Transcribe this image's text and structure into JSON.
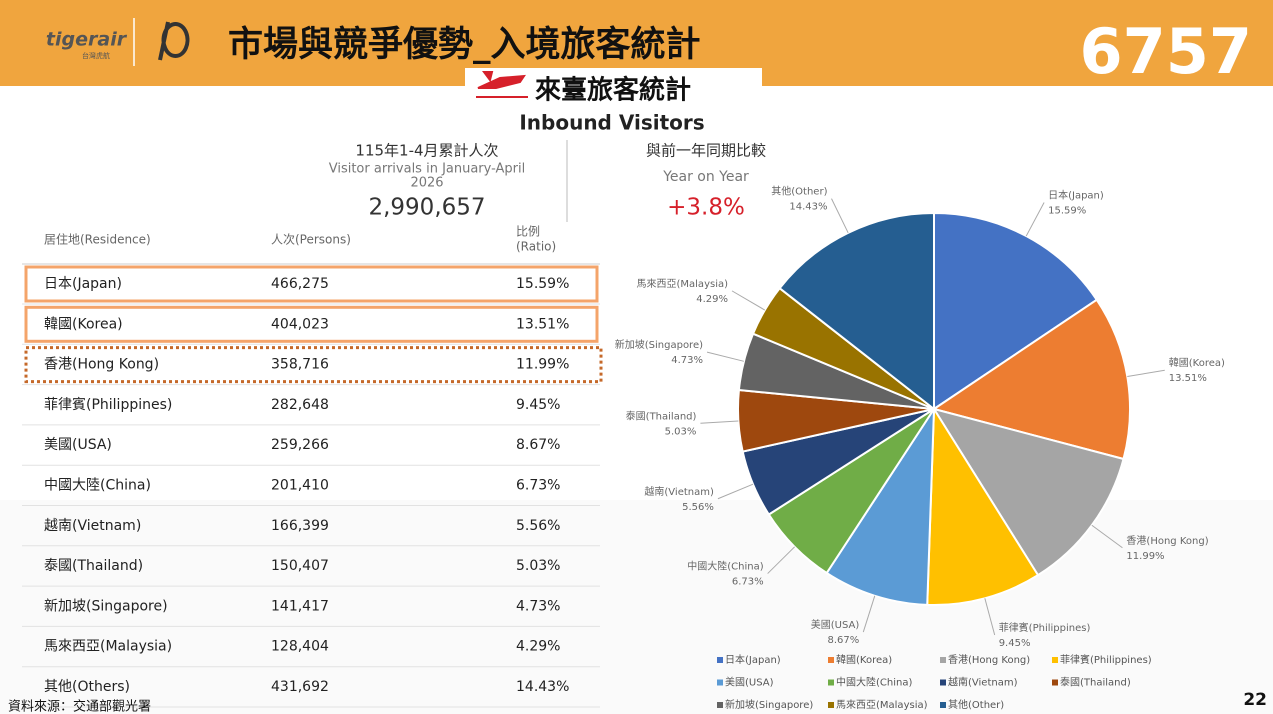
{
  "header": {
    "logo": "tigerair",
    "logo_sub": "台灣虎航",
    "title": "市場與競爭優勢_入境旅客統計",
    "code": "6757"
  },
  "banner": {
    "title": "來臺旅客統計",
    "subtitle": "Inbound Visitors"
  },
  "summary": {
    "arrivals_label": "115年1-4月累計人次",
    "arrivals_label_en": [
      "Visitor arrivals in January-April",
      "2026"
    ],
    "arrivals": "2,990,657",
    "yoy_label": "與前一年同期比較",
    "yoy_label_en": "Year on Year",
    "yoy": "+3.8%"
  },
  "table": {
    "header": [
      "居住地(Residence)",
      "人次(Persons)",
      [
        "比例",
        "(Ratio)"
      ]
    ],
    "rows": [
      [
        "日本(Japan)",
        "466,275",
        "15.59%"
      ],
      [
        "韓國(Korea)",
        "404,023",
        "13.51%"
      ],
      [
        "香港(Hong Kong)",
        "358,716",
        "11.99%"
      ],
      [
        "菲律賓(Philippines)",
        "282,648",
        "9.45%"
      ],
      [
        "美國(USA)",
        "259,266",
        "8.67%"
      ],
      [
        "中國大陸(China)",
        "201,410",
        "6.73%"
      ],
      [
        "越南(Vietnam)",
        "166,399",
        "5.56%"
      ],
      [
        "泰國(Thailand)",
        "150,407",
        "5.03%"
      ],
      [
        "新加坡(Singapore)",
        "141,417",
        "4.73%"
      ],
      [
        "馬來西亞(Malaysia)",
        "128,404",
        "4.29%"
      ],
      [
        "其他(Others)",
        "431,692",
        "14.43%"
      ]
    ]
  },
  "chart_data": {
    "type": "pie",
    "categories": [
      "日本(Japan)",
      "韓國(Korea)",
      "香港(Hong Kong)",
      "菲律賓(Philippines)",
      "美國(USA)",
      "中國大陸(China)",
      "越南(Vietnam)",
      "泰國(Thailand)",
      "新加坡(Singapore)",
      "馬來西亞(Malaysia)",
      "其他(Other)"
    ],
    "values": [
      15.59,
      13.51,
      11.99,
      9.45,
      8.67,
      6.73,
      5.56,
      5.03,
      4.73,
      4.29,
      14.43
    ],
    "value_labels": [
      "15.59%",
      "13.51%",
      "11.99%",
      "9.45%",
      "8.67%",
      "6.73%",
      "5.56%",
      "5.03%",
      "4.73%",
      "4.29%",
      "14.43%"
    ],
    "colors": [
      "#4472c4",
      "#ed7d31",
      "#a5a5a5",
      "#ffc000",
      "#5b9bd5",
      "#70ad47",
      "#264478",
      "#9e480e",
      "#636363",
      "#997300",
      "#255e91"
    ],
    "legend": "bottom"
  },
  "footer": {
    "source": "資料來源：交通部觀光署",
    "page": "22"
  }
}
